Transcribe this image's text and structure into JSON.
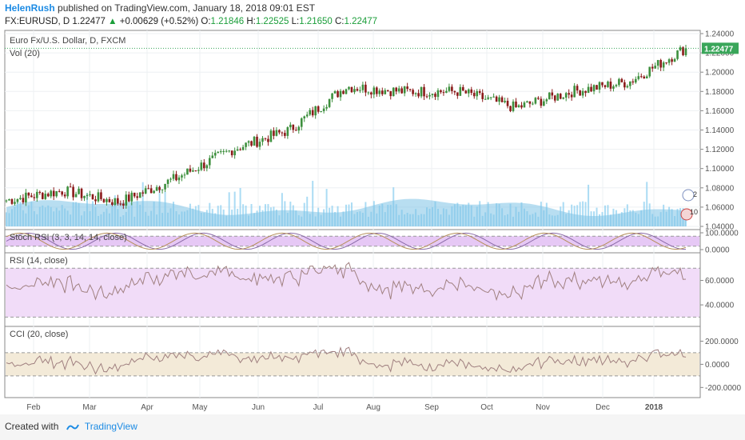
{
  "header": {
    "author": "HelenRush",
    "published_text": "published on TradingView.com, January 18, 2018 09:01 EST",
    "symbol": "FX:EURUSD, D",
    "last": "1.22477",
    "change": "+0.00629 (+0.52%)",
    "o_label": "O:",
    "o_value": "1.21846",
    "h_label": "H:",
    "h_value": "1.22525",
    "l_label": "L:",
    "l_value": "1.21650",
    "c_label": "C:",
    "c_value": "1.22477"
  },
  "footer": {
    "created_with": "Created with",
    "brand": "TradingView"
  },
  "colors": {
    "up": "#3d8f3d",
    "down": "#8b1a1a",
    "volume": "#8fd0f0",
    "vol_ma": "#7ec3e6",
    "stoch_fill": "#e6c8f5",
    "rsi_fill": "#f1dcf8",
    "cci_fill": "#f3ead8",
    "price_tag": "#3aa65a",
    "line": "#a08080"
  },
  "chart_data": [
    {
      "type": "candlestick",
      "pane": "price",
      "title": "Euro Fx/U.S. Dollar, D, FXCM",
      "volume_label": "Vol (20)",
      "last_price_label": "1.22477",
      "x_labels": [
        "Feb",
        "Mar",
        "Apr",
        "May",
        "Jun",
        "Jul",
        "Aug",
        "Sep",
        "Oct",
        "Nov",
        "Dec",
        "2018"
      ],
      "y_ticks": [
        "1.24000",
        "1.22000",
        "1.20000",
        "1.18000",
        "1.16000",
        "1.14000",
        "1.12000",
        "1.10000",
        "1.08000",
        "1.06000",
        "1.04000"
      ],
      "ylim": [
        1.04,
        1.24
      ],
      "monthly_closes": [
        1.067,
        1.077,
        1.065,
        1.09,
        1.12,
        1.14,
        1.185,
        1.18,
        1.18,
        1.163,
        1.18,
        1.19,
        1.225
      ],
      "markers": [
        "2",
        "10"
      ]
    },
    {
      "type": "line",
      "pane": "stoch_rsi",
      "title": "Stoch RSI (3, 3, 14, 14, close)",
      "y_ticks": [
        "100.0000",
        "0.0000"
      ],
      "ylim": [
        0,
        100
      ]
    },
    {
      "type": "line",
      "pane": "rsi",
      "title": "RSI (14, close)",
      "y_ticks": [
        "60.0000",
        "40.0000"
      ],
      "ylim": [
        25,
        80
      ]
    },
    {
      "type": "line",
      "pane": "cci",
      "title": "CCI (20, close)",
      "y_ticks": [
        "200.0000",
        "0.0000",
        "-200.0000"
      ],
      "ylim": [
        -260,
        300
      ]
    }
  ]
}
